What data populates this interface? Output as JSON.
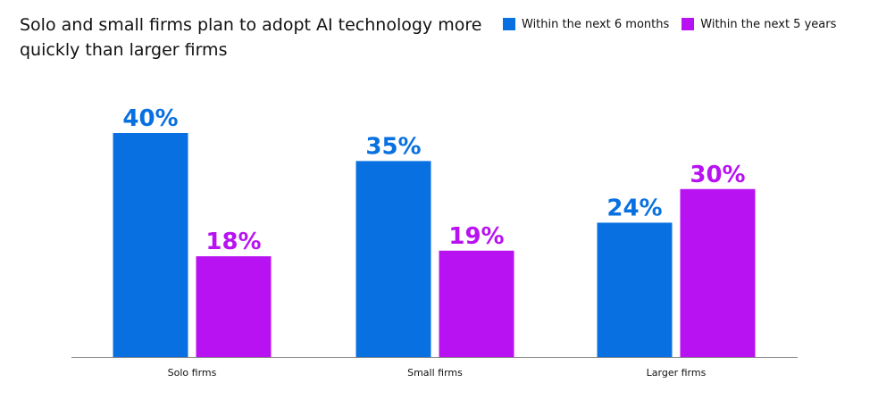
{
  "chart_data": {
    "type": "bar",
    "title": "Solo and small firms plan to adopt AI technology more quickly than larger firms",
    "categories": [
      "Solo firms",
      "Small firms",
      "Larger firms"
    ],
    "series": [
      {
        "name": "Within the next 6 months",
        "color": "#0870e0",
        "values": [
          40,
          35,
          24
        ]
      },
      {
        "name": "Within the next 5 years",
        "color": "#b812f2",
        "values": [
          18,
          19,
          30
        ]
      }
    ],
    "value_suffix": "%",
    "ylim": [
      0,
      40
    ],
    "grid": false,
    "legend_position": "top-right",
    "data_labels": true
  }
}
